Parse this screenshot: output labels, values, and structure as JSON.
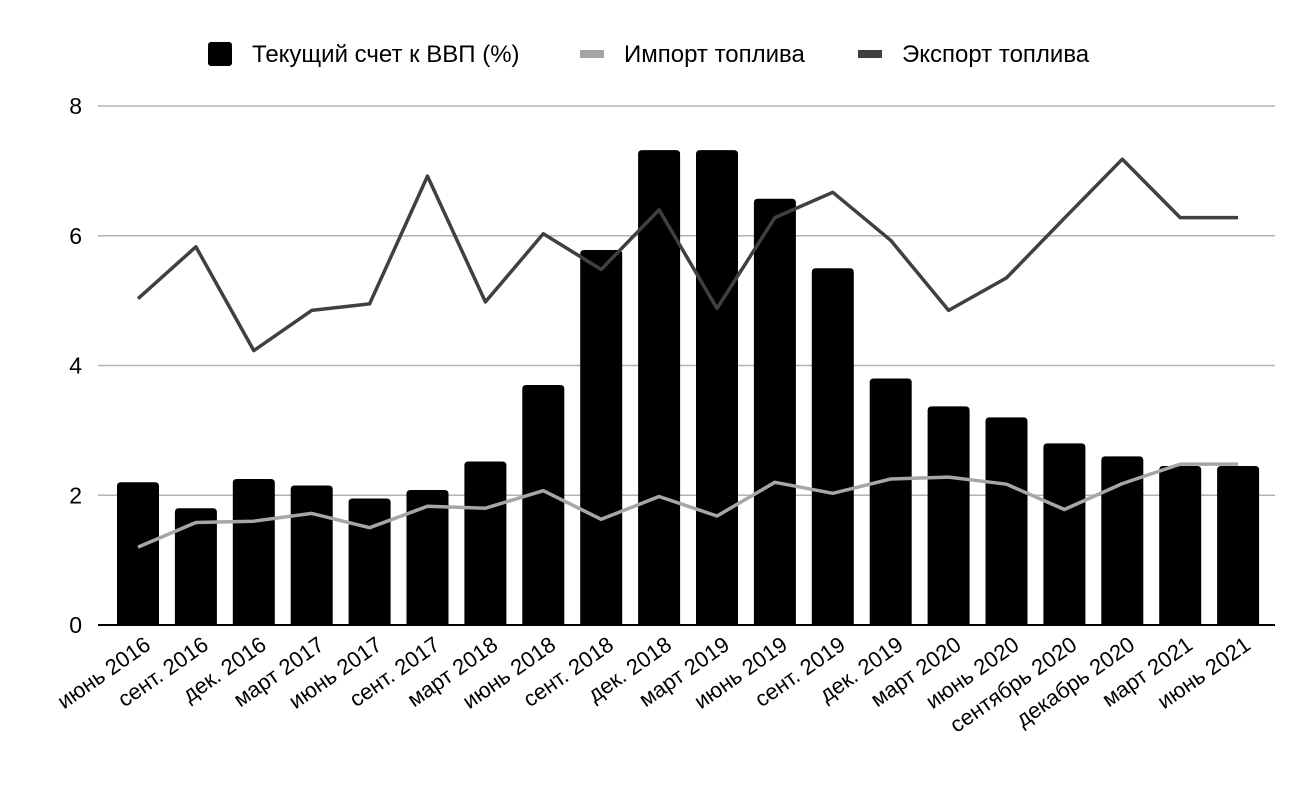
{
  "chart_data": {
    "type": "bar",
    "categories": [
      "июнь 2016",
      "сент. 2016",
      "дек. 2016",
      "март 2017",
      "июнь 2017",
      "сент. 2017",
      "март 2018",
      "июнь 2018",
      "сент. 2018",
      "дек. 2018",
      "март 2019",
      "июнь 2019",
      "сент. 2019",
      "дек. 2019",
      "март 2020",
      "июнь 2020",
      "сентябрь 2020",
      "декабрь 2020",
      "март 2021",
      "июнь 2021"
    ],
    "series": [
      {
        "name": "Текущий счет к ВВП (%)",
        "kind": "bar",
        "color": "#000000",
        "values": [
          2.2,
          1.8,
          2.25,
          2.15,
          1.95,
          2.08,
          2.52,
          3.7,
          5.78,
          7.32,
          7.32,
          6.57,
          5.5,
          3.8,
          3.37,
          3.2,
          2.8,
          2.6,
          2.45,
          2.45
        ]
      },
      {
        "name": "Импорт топлива",
        "kind": "line",
        "color": "#a6a6a6",
        "values": [
          1.2,
          1.58,
          1.6,
          1.72,
          1.5,
          1.83,
          1.8,
          2.07,
          1.63,
          1.98,
          1.68,
          2.2,
          2.03,
          2.25,
          2.28,
          2.17,
          1.78,
          2.18,
          2.48,
          2.48
        ]
      },
      {
        "name": "Экспорт топлива",
        "kind": "line",
        "color": "#404040",
        "values": [
          5.03,
          5.83,
          4.23,
          4.85,
          4.95,
          6.92,
          4.98,
          6.03,
          5.48,
          6.4,
          4.88,
          6.28,
          6.67,
          5.93,
          4.85,
          5.35,
          6.27,
          7.18,
          6.28,
          6.28
        ]
      }
    ],
    "ylim": [
      0,
      8
    ],
    "yticks": [
      "0",
      "2",
      "4",
      "6",
      "8"
    ],
    "grid": true,
    "legend_position": "top-center",
    "title": "",
    "xlabel": "",
    "ylabel": ""
  }
}
